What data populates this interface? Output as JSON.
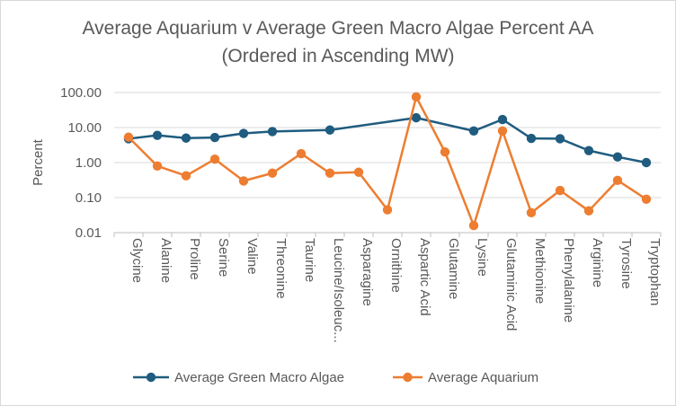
{
  "chart_data": {
    "type": "line",
    "title": "Average Aquarium v Average Green Macro Algae Percent AA",
    "subtitle": "(Ordered in Ascending MW)",
    "ylabel": "Percent",
    "xlabel": "",
    "y_scale": "log",
    "ylim": [
      0.01,
      100
    ],
    "yticks": [
      "100.00",
      "10.00",
      "1.00",
      "0.10",
      "0.01"
    ],
    "grid": "horizontal",
    "legend_position": "bottom",
    "categories": [
      "Glycine",
      "Alanine",
      "Proline",
      "Serine",
      "Valine",
      "Threonine",
      "Taurine",
      "Leucine/Isoleuc...",
      "Asparagine",
      "Ornithine",
      "Aspartic Acid",
      "Glutamine",
      "Lysine",
      "Glutaminic Acid",
      "Methionine",
      "Phenylalanine",
      "Arginine",
      "Tyrosine",
      "Tryptophan"
    ],
    "series": [
      {
        "name": "Average Green Macro Algae",
        "color": "#1f5c7f",
        "values": [
          4.8,
          6.0,
          5.0,
          5.2,
          6.8,
          7.7,
          null,
          8.5,
          null,
          null,
          19,
          null,
          8.0,
          17,
          4.9,
          4.8,
          2.2,
          1.45,
          1.0
        ]
      },
      {
        "name": "Average Aquarium",
        "color": "#ed7d31",
        "values": [
          5.3,
          0.8,
          0.42,
          1.25,
          0.3,
          0.5,
          1.8,
          0.5,
          0.53,
          0.045,
          75,
          2.0,
          0.016,
          8.0,
          0.037,
          0.16,
          0.042,
          0.31,
          0.09
        ]
      }
    ]
  }
}
